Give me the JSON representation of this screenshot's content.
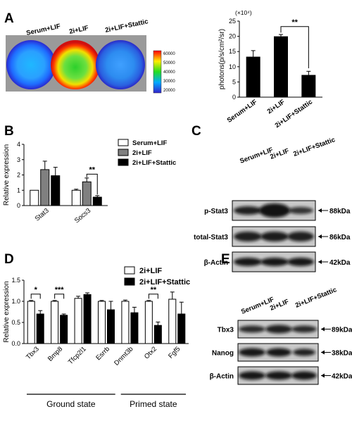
{
  "panels": {
    "a": "A",
    "b": "B",
    "c": "C",
    "d": "D",
    "e": "E"
  },
  "colors": {
    "bar_black": "#000000",
    "bar_gray": "#808080",
    "bar_white": "#ffffff",
    "blot_bg": "#c9c9c9"
  },
  "imaging": {
    "labels": [
      "Serum+LIF",
      "2i+LIF",
      "2i+LIF+Stattic"
    ],
    "colorbar_ticks": [
      "60000",
      "50000",
      "40000",
      "30000",
      "20000"
    ]
  },
  "blots": {
    "c": {
      "lanes": [
        "Serum+LIF",
        "2i+LIF",
        "2i+LIF+Stattic"
      ],
      "rows": [
        {
          "name": "p-Stat3",
          "size": "88kDa"
        },
        {
          "name": "total-Stat3",
          "size": "86kDa"
        },
        {
          "name": "β-Actin",
          "size": "42kDa"
        }
      ]
    },
    "e": {
      "lanes": [
        "Serum+LIF",
        "2i+LIF",
        "2i+LIF+Stattic"
      ],
      "rows": [
        {
          "name": "Tbx3",
          "size": "89kDa"
        },
        {
          "name": "Nanog",
          "size": "38kDa"
        },
        {
          "name": "β-Actin",
          "size": "42kDa"
        }
      ]
    }
  },
  "chart_data": [
    {
      "id": "A",
      "type": "bar",
      "categories": [
        "Serum+LIF",
        "2i+LIF",
        "2i+LIF+Stattic"
      ],
      "values": [
        13.3,
        20.0,
        7.3
      ],
      "errors": [
        2.0,
        0.6,
        1.2
      ],
      "ylabel": "photons(p/s/cm²/sr)",
      "yunit": "(×10⁴)",
      "ylim": [
        0,
        25
      ],
      "yticks": [
        "0",
        "5",
        "10",
        "15",
        "20",
        "25"
      ],
      "significance": [
        {
          "between": [
            1,
            2
          ],
          "label": "**"
        }
      ]
    },
    {
      "id": "B",
      "type": "bar",
      "categories": [
        "Stat3",
        "Socs3"
      ],
      "series": [
        {
          "name": "Serum+LIF",
          "values": [
            1.0,
            1.0
          ],
          "errors": [
            0.0,
            0.07
          ]
        },
        {
          "name": "2i+LIF",
          "values": [
            2.35,
            1.55
          ],
          "errors": [
            0.55,
            0.25
          ]
        },
        {
          "name": "2i+LIF+Stattic",
          "values": [
            1.95,
            0.55
          ],
          "errors": [
            0.55,
            0.1
          ]
        }
      ],
      "ylabel": "Relative expression",
      "ylim": [
        0,
        4
      ],
      "yticks": [
        "0",
        "1",
        "2",
        "3",
        "4"
      ],
      "significance": [
        {
          "category": 1,
          "between": [
            1,
            2
          ],
          "label": "**"
        }
      ]
    },
    {
      "id": "D",
      "type": "bar",
      "categories": [
        "Tbx3",
        "Bmp8",
        "Tfcp2l1",
        "Esrrb",
        "Dnmt3b",
        "Otx2",
        "Fgf5"
      ],
      "series": [
        {
          "name": "2i+LIF",
          "values": [
            1.0,
            1.0,
            1.07,
            1.0,
            1.0,
            1.0,
            1.05
          ],
          "errors": [
            0.02,
            0.02,
            0.05,
            0.02,
            0.03,
            0.02,
            0.17
          ]
        },
        {
          "name": "2i+LIF+Stattic",
          "values": [
            0.7,
            0.67,
            1.16,
            0.8,
            0.73,
            0.43,
            0.7
          ],
          "errors": [
            0.08,
            0.03,
            0.04,
            0.2,
            0.13,
            0.08,
            0.28
          ]
        }
      ],
      "ylabel": "Relative expression",
      "ylim": [
        0,
        1.5
      ],
      "yticks": [
        "0.0",
        "0.5",
        "1.0",
        "1.5"
      ],
      "significance": [
        {
          "category": 0,
          "label": "*"
        },
        {
          "category": 1,
          "label": "***"
        },
        {
          "category": 5,
          "label": "**"
        }
      ],
      "groups": [
        {
          "label": "Ground state",
          "from": 0,
          "to": 3
        },
        {
          "label": "Primed state",
          "from": 4,
          "to": 6
        }
      ]
    }
  ]
}
